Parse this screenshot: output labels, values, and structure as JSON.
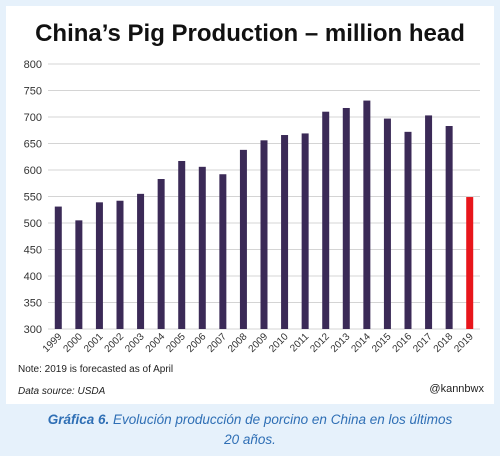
{
  "chart_data": {
    "type": "bar",
    "title": "China’s Pig Production – million head",
    "categories": [
      "1999",
      "2000",
      "2001",
      "2002",
      "2003",
      "2004",
      "2005",
      "2006",
      "2007",
      "2008",
      "2009",
      "2010",
      "2011",
      "2012",
      "2013",
      "2014",
      "2015",
      "2016",
      "2017",
      "2018",
      "2019"
    ],
    "values": [
      531,
      505,
      539,
      542,
      555,
      583,
      617,
      606,
      592,
      638,
      656,
      666,
      669,
      710,
      717,
      731,
      697,
      672,
      703,
      683,
      549
    ],
    "highlight_index": 20,
    "ylim": [
      300,
      800
    ],
    "yticks": [
      300,
      350,
      400,
      450,
      500,
      550,
      600,
      650,
      700,
      750,
      800
    ],
    "grid": true,
    "colors": {
      "bar": "#3b2a57",
      "highlight": "#e8161b"
    },
    "note": "Note: 2019 is forecasted as of April",
    "source": "Data source: USDA",
    "handle": "@kannbwx"
  },
  "caption": {
    "label": "Gráfica 6.",
    "text_line1": " Evolución producción de porcino en China en los últimos",
    "text_line2": "20 años."
  }
}
